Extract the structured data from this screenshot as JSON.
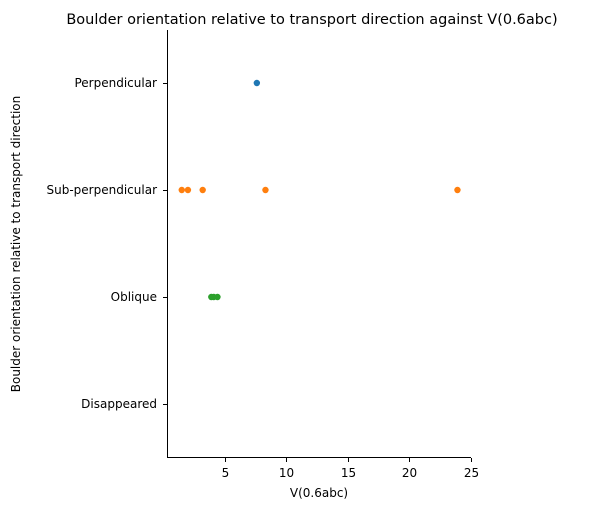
{
  "chart_data": {
    "type": "scatter",
    "title": "Boulder orientation relative to transport direction against V(0.6abc)",
    "xlabel": "V(0.6abc)",
    "ylabel": "Boulder orientation relative to transport direction",
    "xlim": [
      0.3,
      25.0
    ],
    "x_ticks": [
      5,
      10,
      15,
      20,
      25
    ],
    "categories": [
      "Perpendicular",
      "Sub-perpendicular",
      "Oblique",
      "Disappeared"
    ],
    "grid": false,
    "legend": "none",
    "series": [
      {
        "category": "Perpendicular",
        "color": "#1f77b4",
        "x": [
          7.6
        ]
      },
      {
        "category": "Sub-perpendicular",
        "color": "#ff7f0e",
        "x": [
          1.5,
          2.0,
          3.2,
          8.3,
          23.9
        ]
      },
      {
        "category": "Oblique",
        "color": "#2ca02c",
        "x": [
          3.9,
          4.1,
          4.4
        ]
      },
      {
        "category": "Disappeared",
        "color": "#d62728",
        "x": []
      }
    ]
  }
}
